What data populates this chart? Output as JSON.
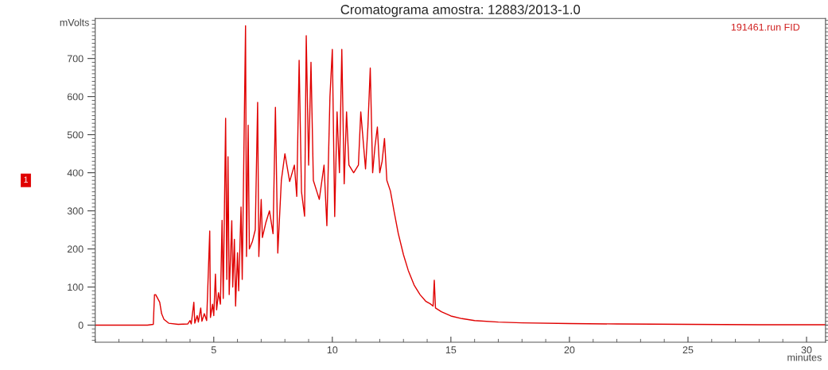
{
  "chart_data": {
    "type": "line",
    "title": "Cromatograma amostra: 12883/2013-1.0",
    "xlabel": "minutes",
    "ylabel": "mVolts",
    "annotations": [
      "191461.run FID",
      "1"
    ],
    "x": [
      0,
      2.2,
      2.45,
      2.5,
      2.55,
      2.6,
      2.68,
      2.72,
      2.8,
      2.9,
      3.1,
      3.5,
      3.9,
      4.0,
      4.05,
      4.16,
      4.2,
      4.3,
      4.35,
      4.45,
      4.5,
      4.6,
      4.7,
      4.83,
      4.86,
      4.95,
      5.0,
      5.07,
      5.12,
      5.2,
      5.28,
      5.35,
      5.4,
      5.5,
      5.55,
      5.6,
      5.65,
      5.76,
      5.8,
      5.87,
      5.92,
      6.0,
      6.05,
      6.15,
      6.2,
      6.34,
      6.38,
      6.45,
      6.5,
      6.6,
      6.63,
      6.7,
      6.75,
      6.85,
      6.9,
      7.0,
      7.05,
      7.15,
      7.2,
      7.3,
      7.35,
      7.45,
      7.5,
      7.6,
      7.7,
      7.8,
      7.85,
      7.95,
      8.0,
      8.1,
      8.2,
      8.3,
      8.4,
      8.5,
      8.6,
      8.7,
      8.83,
      8.9,
      9.0,
      9.1,
      9.2,
      9.36,
      9.45,
      9.55,
      9.65,
      9.77,
      9.9,
      10.0,
      10.1,
      10.2,
      10.3,
      10.4,
      10.5,
      10.6,
      10.7,
      10.84,
      10.9,
      11.0,
      11.1,
      11.2,
      11.3,
      11.4,
      11.5,
      11.6,
      11.7,
      11.8,
      11.9,
      12.0,
      12.1,
      12.2,
      12.3,
      12.45,
      12.6,
      12.78,
      13.0,
      13.2,
      13.45,
      13.7,
      13.95,
      14.13,
      14.25,
      14.3,
      14.35,
      14.6,
      15.0,
      15.47,
      16.0,
      17.0,
      18.0,
      20.0,
      22.0,
      25.0,
      28.0,
      30.8
    ],
    "series": [
      {
        "color": "#e00000",
        "values": [
          0,
          0,
          2,
          80,
          80,
          null,
          null,
          60,
          30,
          15,
          5,
          2,
          3,
          12,
          3,
          60,
          5,
          25,
          8,
          45,
          10,
          30,
          12,
          247,
          20,
          55,
          25,
          134,
          40,
          85,
          55,
          275,
          70,
          543,
          120,
          442,
          80,
          274,
          100,
          225,
          50,
          190,
          90,
          310,
          120,
          786,
          180,
          525,
          200,
          null,
          220,
          null,
          250,
          585,
          180,
          330,
          230,
          null,
          270,
          null,
          300,
          null,
          240,
          572,
          189,
          null,
          380,
          null,
          450,
          null,
          377,
          null,
          420,
          338,
          695,
          350,
          286,
          760,
          420,
          690,
          380,
          null,
          330,
          null,
          420,
          261,
          600,
          724,
          285,
          560,
          400,
          724,
          371,
          560,
          420,
          null,
          400,
          null,
          420,
          560,
          null,
          410,
          520,
          675,
          400,
          470,
          520,
          400,
          430,
          490,
          380,
          352,
          300,
          241,
          185,
          144,
          105,
          80,
          62,
          56,
          50,
          118,
          45,
          35,
          24,
          17,
          12,
          8,
          6,
          4,
          3,
          2,
          1,
          1
        ]
      }
    ],
    "xlim": [
      0,
      30.8
    ],
    "xticks": [
      5,
      10,
      15,
      20,
      25,
      30
    ],
    "ylim": [
      -45,
      805
    ],
    "yticks": [
      0,
      100,
      200,
      300,
      400,
      500,
      600,
      700
    ],
    "grid": false
  }
}
